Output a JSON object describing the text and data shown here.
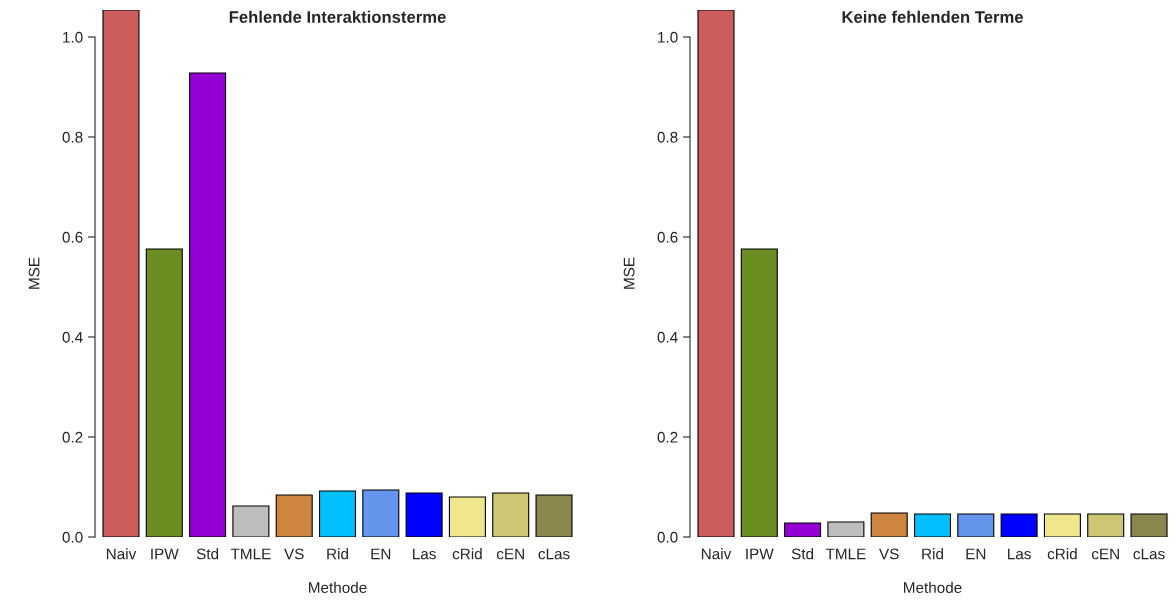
{
  "chart_data": [
    {
      "type": "bar",
      "title": "Fehlende Interaktionsterme",
      "xlabel": "Methode",
      "ylabel": "MSE",
      "categories": [
        "Naiv",
        "IPW",
        "Std",
        "TMLE",
        "VS",
        "Rid",
        "EN",
        "Las",
        "cRid",
        "cEN",
        "cLas"
      ],
      "values": [
        1.054,
        0.576,
        0.928,
        0.062,
        0.084,
        0.092,
        0.094,
        0.088,
        0.08,
        0.088,
        0.084
      ],
      "colors": [
        "#cd5c5c",
        "#6b8e23",
        "#9400d3",
        "#bebebe",
        "#cd853f",
        "#00bfff",
        "#6495ed",
        "#0000ff",
        "#f0e68c",
        "#cdc673",
        "#8b864e"
      ],
      "ylim": [
        0,
        1.054
      ],
      "yticks": [
        {
          "value": 0,
          "label": "0.0"
        },
        {
          "value": 0.2,
          "label": "0.2"
        },
        {
          "value": 0.4,
          "label": "0.4"
        },
        {
          "value": 0.6,
          "label": "0.6"
        },
        {
          "value": 0.8,
          "label": "0.8"
        },
        {
          "value": 1,
          "label": "1.0"
        }
      ],
      "grid": false,
      "legend": false
    },
    {
      "type": "bar",
      "title": "Keine fehlenden Terme",
      "xlabel": "Methode",
      "ylabel": "MSE",
      "categories": [
        "Naiv",
        "IPW",
        "Std",
        "TMLE",
        "VS",
        "Rid",
        "EN",
        "Las",
        "cRid",
        "cEN",
        "cLas"
      ],
      "values": [
        1.054,
        0.576,
        0.028,
        0.03,
        0.048,
        0.046,
        0.046,
        0.046,
        0.046,
        0.046,
        0.046
      ],
      "colors": [
        "#cd5c5c",
        "#6b8e23",
        "#9400d3",
        "#bebebe",
        "#cd853f",
        "#00bfff",
        "#6495ed",
        "#0000ff",
        "#f0e68c",
        "#cdc673",
        "#8b864e"
      ],
      "ylim": [
        0,
        1.054
      ],
      "yticks": [
        {
          "value": 0,
          "label": "0.0"
        },
        {
          "value": 0.2,
          "label": "0.2"
        },
        {
          "value": 0.4,
          "label": "0.4"
        },
        {
          "value": 0.6,
          "label": "0.6"
        },
        {
          "value": 0.8,
          "label": "0.8"
        },
        {
          "value": 1,
          "label": "1.0"
        }
      ],
      "grid": false,
      "legend": false
    }
  ]
}
